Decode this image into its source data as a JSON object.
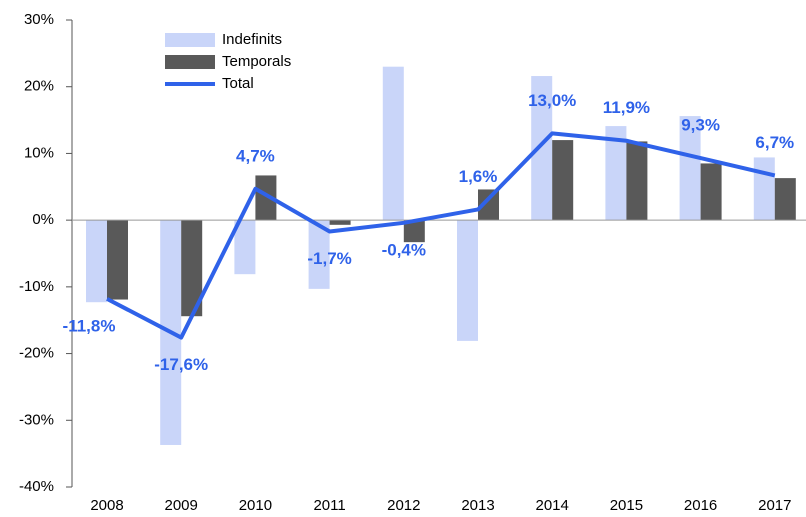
{
  "chart_data": {
    "type": "bar_line",
    "categories": [
      "2008",
      "2009",
      "2010",
      "2011",
      "2012",
      "2013",
      "2014",
      "2015",
      "2016",
      "2017"
    ],
    "series": [
      {
        "name": "Indefinits",
        "type": "bar",
        "color": "#c9d5f9",
        "values": [
          -12.3,
          -33.7,
          -8.1,
          -10.3,
          23.0,
          -18.1,
          21.6,
          14.1,
          15.6,
          9.4
        ]
      },
      {
        "name": "Temporals",
        "type": "bar",
        "color": "#595959",
        "values": [
          -11.9,
          -14.4,
          6.7,
          -0.7,
          -3.3,
          4.6,
          12.0,
          11.8,
          8.5,
          6.3
        ]
      },
      {
        "name": "Total",
        "type": "line",
        "color": "#2f62e9",
        "values": [
          -11.8,
          -17.6,
          4.7,
          -1.7,
          -0.4,
          1.6,
          13.0,
          11.9,
          9.3,
          6.7
        ],
        "value_labels": [
          "-11,8%",
          "-17,6%",
          "4,7%",
          "-1,7%",
          "-0,4%",
          "1,6%",
          "13,0%",
          "11,9%",
          "9,3%",
          "6,7%"
        ]
      }
    ],
    "ylim": [
      -40,
      30
    ],
    "yticks": [
      {
        "value": -40,
        "label": "-40%"
      },
      {
        "value": -30,
        "label": "-30%"
      },
      {
        "value": -20,
        "label": "-20%"
      },
      {
        "value": -10,
        "label": "-10%"
      },
      {
        "value": 0,
        "label": "0%"
      },
      {
        "value": 10,
        "label": "10%"
      },
      {
        "value": 20,
        "label": "20%"
      },
      {
        "value": 30,
        "label": "30%"
      }
    ]
  }
}
